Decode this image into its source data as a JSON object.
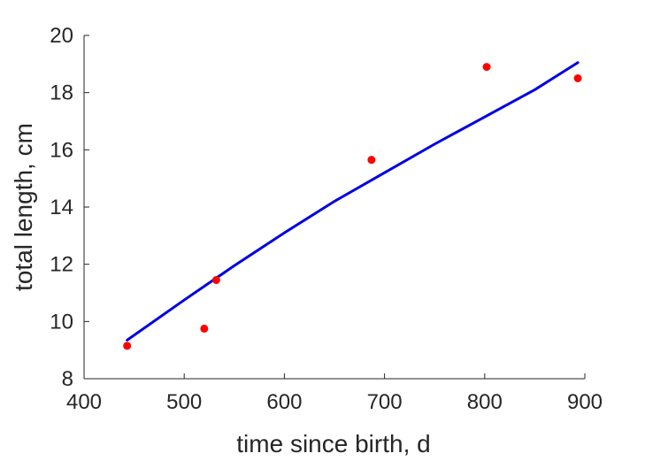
{
  "chart_data": {
    "type": "scatter",
    "title": "",
    "xlabel": "time since birth, d",
    "ylabel": "total length, cm",
    "xlim": [
      400,
      900
    ],
    "ylim": [
      8,
      20
    ],
    "xticks": [
      400,
      500,
      600,
      700,
      800,
      900
    ],
    "yticks": [
      8,
      10,
      12,
      14,
      16,
      18,
      20
    ],
    "grid": false,
    "legend": null,
    "series": [
      {
        "kind": "scatter",
        "color": "#ff0000",
        "points": [
          {
            "x": 443,
            "y": 9.15
          },
          {
            "x": 520,
            "y": 9.75
          },
          {
            "x": 532,
            "y": 11.45
          },
          {
            "x": 687,
            "y": 15.65
          },
          {
            "x": 802,
            "y": 18.9
          },
          {
            "x": 893,
            "y": 18.5
          }
        ]
      },
      {
        "kind": "line",
        "color": "#0000e6",
        "points": [
          {
            "x": 443,
            "y": 9.35
          },
          {
            "x": 500,
            "y": 10.75
          },
          {
            "x": 550,
            "y": 11.95
          },
          {
            "x": 600,
            "y": 13.1
          },
          {
            "x": 650,
            "y": 14.2
          },
          {
            "x": 700,
            "y": 15.2
          },
          {
            "x": 750,
            "y": 16.2
          },
          {
            "x": 800,
            "y": 17.15
          },
          {
            "x": 850,
            "y": 18.1
          },
          {
            "x": 893,
            "y": 19.05
          }
        ]
      }
    ]
  }
}
